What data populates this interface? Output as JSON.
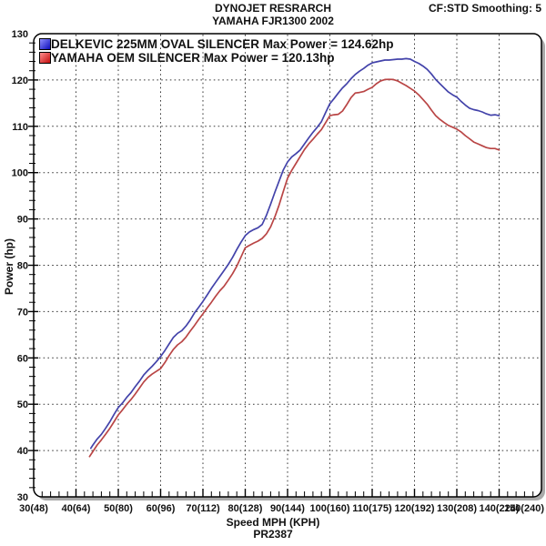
{
  "chart_data": {
    "type": "line",
    "title": "DYNOJET RESRARCH",
    "subtitle": "YAMAHA FJR1300 2002",
    "top_right_annotation": "CF:STD Smoothing: 5",
    "bottom_annotation": "PR2387",
    "xlabel": "Speed MPH (KPH)",
    "ylabel": "Power (hp)",
    "xlim": [
      30,
      150
    ],
    "ylim": [
      30,
      130
    ],
    "x_major_step": 10,
    "x_minor_step": 2,
    "y_major_step": 10,
    "y_minor_step": 2,
    "grid": "dotted-major",
    "grid_color": "#3a3a3a",
    "legend_position": "top-left",
    "x_ticks": [
      30,
      40,
      50,
      60,
      70,
      80,
      90,
      100,
      110,
      120,
      130,
      140,
      150
    ],
    "x_tick_labels": [
      "30(48)",
      "40(64)",
      "50(80)",
      "60(96)",
      "70(112)",
      "80(128)",
      "90(144)",
      "100(160)",
      "110(175)",
      "120(192)",
      "130(208)",
      "140(224)",
      "150(240)"
    ],
    "y_ticks": [
      30,
      40,
      50,
      60,
      70,
      80,
      90,
      100,
      110,
      120,
      130
    ],
    "y_tick_labels": [
      "30",
      "40",
      "50",
      "60",
      "70",
      "80",
      "90",
      "100",
      "110",
      "120",
      "130"
    ],
    "series": [
      {
        "name": "DELKEVIC 225MM OVAL SILENCER",
        "legend_label": "DELKEVIC 225MM OVAL SILENCER Max Power = 124.62hp",
        "max_power_hp": 124.62,
        "color": "#4343aa",
        "swatch_light": "#8f8fff",
        "swatch_dark": "#0d0dbb",
        "points_mph_hp": [
          [
            43.5,
            40.5
          ],
          [
            44,
            41.2
          ],
          [
            45,
            42.5
          ],
          [
            46,
            43.5
          ],
          [
            47,
            44.8
          ],
          [
            48,
            46.2
          ],
          [
            49,
            47.8
          ],
          [
            50,
            49.3
          ],
          [
            51,
            50.3
          ],
          [
            52,
            51.5
          ],
          [
            53,
            52.5
          ],
          [
            54,
            53.8
          ],
          [
            55,
            55.0
          ],
          [
            56,
            56.3
          ],
          [
            57,
            57.3
          ],
          [
            58,
            58.2
          ],
          [
            59,
            59.2
          ],
          [
            60,
            60.3
          ],
          [
            61,
            61.6
          ],
          [
            62,
            63.0
          ],
          [
            63,
            64.4
          ],
          [
            64,
            65.3
          ],
          [
            65,
            65.9
          ],
          [
            66,
            66.9
          ],
          [
            67,
            68.2
          ],
          [
            68,
            69.7
          ],
          [
            69,
            70.9
          ],
          [
            70,
            72.2
          ],
          [
            71,
            73.6
          ],
          [
            72,
            75.0
          ],
          [
            73,
            76.3
          ],
          [
            74,
            77.6
          ],
          [
            75,
            78.9
          ],
          [
            76,
            80.2
          ],
          [
            77,
            81.7
          ],
          [
            78,
            83.4
          ],
          [
            79,
            85.0
          ],
          [
            80,
            86.4
          ],
          [
            81,
            87.2
          ],
          [
            82,
            87.7
          ],
          [
            83,
            88.1
          ],
          [
            84,
            88.8
          ],
          [
            85,
            90.8
          ],
          [
            86,
            93.2
          ],
          [
            87,
            95.8
          ],
          [
            88,
            98.2
          ],
          [
            89,
            100.6
          ],
          [
            90,
            102.3
          ],
          [
            91,
            103.4
          ],
          [
            92,
            104.1
          ],
          [
            93,
            104.9
          ],
          [
            94,
            106.2
          ],
          [
            95,
            107.5
          ],
          [
            96,
            108.7
          ],
          [
            97,
            109.8
          ],
          [
            98,
            111.0
          ],
          [
            99,
            113.0
          ],
          [
            100,
            114.9
          ],
          [
            101,
            116.0
          ],
          [
            102,
            117.2
          ],
          [
            103,
            118.3
          ],
          [
            104,
            119.2
          ],
          [
            105,
            120.3
          ],
          [
            106,
            121.2
          ],
          [
            107,
            121.9
          ],
          [
            108,
            122.5
          ],
          [
            109,
            123.2
          ],
          [
            110,
            123.7
          ],
          [
            111,
            123.9
          ],
          [
            112,
            124.1
          ],
          [
            113,
            124.3
          ],
          [
            114,
            124.3
          ],
          [
            115,
            124.4
          ],
          [
            116,
            124.5
          ],
          [
            117,
            124.5
          ],
          [
            118,
            124.62
          ],
          [
            119,
            124.5
          ],
          [
            120,
            124.0
          ],
          [
            121,
            123.6
          ],
          [
            122,
            123.0
          ],
          [
            123,
            122.3
          ],
          [
            124,
            121.3
          ],
          [
            125,
            120.1
          ],
          [
            126,
            119.2
          ],
          [
            127,
            118.3
          ],
          [
            128,
            117.4
          ],
          [
            129,
            116.8
          ],
          [
            130,
            116.3
          ],
          [
            131,
            115.4
          ],
          [
            132,
            114.6
          ],
          [
            133,
            113.9
          ],
          [
            134,
            113.6
          ],
          [
            135,
            113.4
          ],
          [
            136,
            113.1
          ],
          [
            137,
            112.7
          ],
          [
            138,
            112.4
          ],
          [
            139,
            112.5
          ],
          [
            140,
            112.3
          ]
        ]
      },
      {
        "name": "YAMAHA OEM SILENCER",
        "legend_label": "YAMAHA OEM SILENCER Max Power = 120.13hp",
        "max_power_hp": 120.13,
        "color": "#b94545",
        "swatch_light": "#ff8f8f",
        "swatch_dark": "#c40d0d",
        "points_mph_hp": [
          [
            43.2,
            38.7
          ],
          [
            44,
            39.8
          ],
          [
            45,
            41.2
          ],
          [
            46,
            42.3
          ],
          [
            47,
            43.5
          ],
          [
            48,
            44.8
          ],
          [
            49,
            46.2
          ],
          [
            50,
            47.7
          ],
          [
            51,
            48.8
          ],
          [
            52,
            50.0
          ],
          [
            53,
            51.0
          ],
          [
            54,
            52.2
          ],
          [
            55,
            53.5
          ],
          [
            56,
            54.8
          ],
          [
            57,
            55.8
          ],
          [
            58,
            56.5
          ],
          [
            59,
            57.1
          ],
          [
            60,
            57.7
          ],
          [
            61,
            59.0
          ],
          [
            62,
            60.5
          ],
          [
            63,
            61.8
          ],
          [
            64,
            62.8
          ],
          [
            65,
            63.5
          ],
          [
            66,
            64.5
          ],
          [
            67,
            65.8
          ],
          [
            68,
            67.0
          ],
          [
            69,
            68.3
          ],
          [
            70,
            69.5
          ],
          [
            71,
            70.8
          ],
          [
            72,
            72.0
          ],
          [
            73,
            73.3
          ],
          [
            74,
            74.5
          ],
          [
            75,
            75.5
          ],
          [
            76,
            76.8
          ],
          [
            77,
            78.2
          ],
          [
            78,
            79.8
          ],
          [
            79,
            81.8
          ],
          [
            80,
            83.8
          ],
          [
            81,
            84.3
          ],
          [
            82,
            84.8
          ],
          [
            83,
            85.2
          ],
          [
            84,
            85.8
          ],
          [
            85,
            86.8
          ],
          [
            86,
            88.3
          ],
          [
            87,
            90.5
          ],
          [
            88,
            93.0
          ],
          [
            89,
            96.0
          ],
          [
            90,
            98.8
          ],
          [
            91,
            100.5
          ],
          [
            92,
            102.0
          ],
          [
            93,
            103.5
          ],
          [
            94,
            105.0
          ],
          [
            95,
            106.2
          ],
          [
            96,
            107.2
          ],
          [
            97,
            108.3
          ],
          [
            98,
            109.3
          ],
          [
            99,
            110.8
          ],
          [
            100,
            112.3
          ],
          [
            101,
            112.5
          ],
          [
            102,
            112.6
          ],
          [
            103,
            113.3
          ],
          [
            104,
            114.7
          ],
          [
            105,
            116.2
          ],
          [
            106,
            117.2
          ],
          [
            107,
            117.3
          ],
          [
            108,
            117.5
          ],
          [
            109,
            118.0
          ],
          [
            110,
            118.4
          ],
          [
            111,
            119.2
          ],
          [
            112,
            119.8
          ],
          [
            113,
            120.1
          ],
          [
            114,
            120.13
          ],
          [
            115,
            120.1
          ],
          [
            116,
            119.8
          ],
          [
            117,
            119.3
          ],
          [
            118,
            118.8
          ],
          [
            119,
            118.2
          ],
          [
            120,
            117.6
          ],
          [
            121,
            116.8
          ],
          [
            122,
            115.8
          ],
          [
            123,
            114.8
          ],
          [
            124,
            113.5
          ],
          [
            125,
            112.3
          ],
          [
            126,
            111.5
          ],
          [
            127,
            110.8
          ],
          [
            128,
            110.2
          ],
          [
            129,
            109.8
          ],
          [
            130,
            109.4
          ],
          [
            131,
            108.8
          ],
          [
            132,
            108.0
          ],
          [
            133,
            107.3
          ],
          [
            134,
            106.6
          ],
          [
            135,
            106.2
          ],
          [
            136,
            105.8
          ],
          [
            137,
            105.4
          ],
          [
            138,
            105.2
          ],
          [
            139,
            105.2
          ],
          [
            140,
            104.9
          ]
        ]
      }
    ]
  }
}
